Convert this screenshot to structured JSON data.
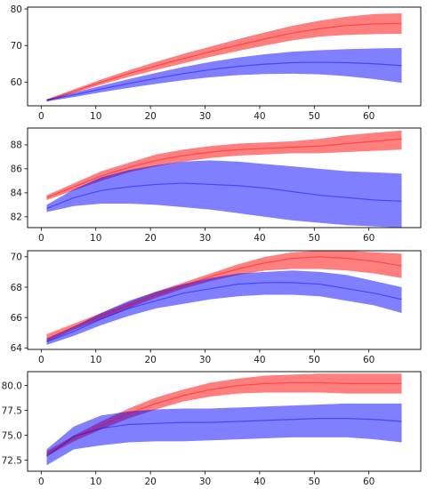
{
  "colors": {
    "series_a": "#ff0000",
    "series_b": "#0000ff",
    "band_opacity": 0.5,
    "line_opacity": 0.45,
    "axes": "#000000"
  },
  "chart_data": [
    {
      "type": "area",
      "grid": false,
      "legend": "none",
      "xlim": [
        -2.5,
        69.5
      ],
      "ylim": [
        53.5,
        80.5
      ],
      "xticks": [
        0,
        10,
        20,
        30,
        40,
        50,
        60
      ],
      "xtick_labels": [
        "0",
        "10",
        "20",
        "30",
        "40",
        "50",
        "60"
      ],
      "yticks": [
        60,
        70,
        80
      ],
      "ytick_labels": [
        "60",
        "70",
        "80"
      ],
      "x": [
        1,
        6,
        11,
        16,
        21,
        26,
        31,
        36,
        41,
        46,
        51,
        56,
        61,
        66
      ],
      "series": [
        {
          "color": "red",
          "mean": [
            55.0,
            57.5,
            60.0,
            62.3,
            64.4,
            66.4,
            68.3,
            70.1,
            71.8,
            73.4,
            74.6,
            75.5,
            75.9,
            76.0
          ],
          "lower": [
            54.7,
            57.0,
            59.3,
            61.4,
            63.3,
            65.1,
            66.9,
            68.5,
            70.0,
            71.4,
            72.4,
            72.9,
            73.1,
            73.2
          ],
          "upper": [
            55.3,
            58.0,
            60.7,
            63.2,
            65.5,
            67.7,
            69.7,
            71.7,
            73.6,
            75.4,
            76.8,
            77.9,
            78.6,
            78.8
          ]
        },
        {
          "color": "blue",
          "mean": [
            55.0,
            56.5,
            58.1,
            59.6,
            61.0,
            62.3,
            63.4,
            64.3,
            64.9,
            65.3,
            65.4,
            65.3,
            65.0,
            64.5
          ],
          "lower": [
            54.7,
            55.9,
            57.2,
            58.4,
            59.5,
            60.5,
            61.3,
            61.9,
            62.2,
            62.3,
            62.1,
            61.6,
            60.8,
            59.8
          ],
          "upper": [
            55.3,
            57.1,
            59.0,
            60.8,
            62.5,
            64.1,
            65.5,
            66.7,
            67.6,
            68.3,
            68.7,
            69.0,
            69.2,
            69.3
          ]
        }
      ]
    },
    {
      "type": "area",
      "grid": false,
      "legend": "none",
      "xlim": [
        -2.5,
        69.5
      ],
      "ylim": [
        81.1,
        89.4
      ],
      "xticks": [
        0,
        10,
        20,
        30,
        40,
        50,
        60
      ],
      "xtick_labels": [
        "0",
        "10",
        "20",
        "30",
        "40",
        "50",
        "60"
      ],
      "yticks": [
        82,
        84,
        86,
        88
      ],
      "ytick_labels": [
        "82",
        "84",
        "86",
        "88"
      ],
      "x": [
        1,
        6,
        11,
        16,
        21,
        26,
        31,
        36,
        41,
        46,
        51,
        56,
        61,
        66
      ],
      "series": [
        {
          "color": "red",
          "mean": [
            83.6,
            84.5,
            85.4,
            86.1,
            86.7,
            87.1,
            87.4,
            87.6,
            87.7,
            87.8,
            87.9,
            88.1,
            88.3,
            88.5
          ],
          "lower": [
            83.4,
            84.2,
            85.0,
            85.7,
            86.2,
            86.6,
            86.9,
            87.1,
            87.2,
            87.3,
            87.3,
            87.4,
            87.5,
            87.6
          ],
          "upper": [
            83.8,
            84.8,
            85.8,
            86.5,
            87.2,
            87.6,
            87.9,
            88.1,
            88.2,
            88.3,
            88.5,
            88.8,
            89.0,
            89.2
          ]
        },
        {
          "color": "blue",
          "mean": [
            82.7,
            83.6,
            84.2,
            84.5,
            84.7,
            84.8,
            84.7,
            84.6,
            84.4,
            84.1,
            83.8,
            83.6,
            83.4,
            83.3
          ],
          "lower": [
            82.4,
            82.9,
            83.1,
            83.1,
            83.0,
            82.8,
            82.6,
            82.3,
            82.0,
            81.7,
            81.5,
            81.3,
            81.2,
            81.1
          ],
          "upper": [
            83.0,
            84.3,
            85.3,
            85.9,
            86.3,
            86.6,
            86.7,
            86.6,
            86.4,
            86.2,
            86.0,
            85.8,
            85.7,
            85.6
          ]
        }
      ]
    },
    {
      "type": "area",
      "grid": false,
      "legend": "none",
      "xlim": [
        -2.5,
        69.5
      ],
      "ylim": [
        63.9,
        70.4
      ],
      "xticks": [
        0,
        10,
        20,
        30,
        40,
        50,
        60
      ],
      "xtick_labels": [
        "0",
        "10",
        "20",
        "30",
        "40",
        "50",
        "60"
      ],
      "yticks": [
        64,
        66,
        68,
        70
      ],
      "ytick_labels": [
        "64",
        "66",
        "68",
        "70"
      ],
      "x": [
        1,
        6,
        11,
        16,
        21,
        26,
        31,
        36,
        41,
        46,
        51,
        56,
        61,
        66
      ],
      "series": [
        {
          "color": "red",
          "mean": [
            64.6,
            65.4,
            66.1,
            66.8,
            67.5,
            68.1,
            68.7,
            69.2,
            69.6,
            69.9,
            70.0,
            69.9,
            69.7,
            69.4
          ],
          "lower": [
            64.4,
            65.2,
            65.9,
            66.6,
            67.3,
            67.9,
            68.4,
            68.8,
            69.1,
            69.2,
            69.2,
            69.1,
            68.9,
            68.6
          ],
          "upper": [
            64.9,
            65.6,
            66.3,
            67.0,
            67.7,
            68.3,
            68.9,
            69.5,
            70.0,
            70.3,
            70.4,
            70.4,
            70.3,
            70.2
          ]
        },
        {
          "color": "blue",
          "mean": [
            64.4,
            65.1,
            65.9,
            66.6,
            67.1,
            67.6,
            67.9,
            68.2,
            68.3,
            68.3,
            68.2,
            67.9,
            67.6,
            67.2
          ],
          "lower": [
            64.2,
            64.8,
            65.5,
            66.1,
            66.6,
            66.9,
            67.2,
            67.4,
            67.5,
            67.5,
            67.4,
            67.1,
            66.8,
            66.3
          ],
          "upper": [
            64.6,
            65.4,
            66.3,
            67.1,
            67.7,
            68.2,
            68.6,
            68.9,
            69.0,
            69.1,
            69.0,
            68.8,
            68.4,
            68.0
          ]
        }
      ]
    },
    {
      "type": "area",
      "grid": false,
      "legend": "none",
      "xlim": [
        -2.5,
        69.5
      ],
      "ylim": [
        71.4,
        81.4
      ],
      "xticks": [
        0,
        10,
        20,
        30,
        40,
        50,
        60
      ],
      "xtick_labels": [
        "0",
        "10",
        "20",
        "30",
        "40",
        "50",
        "60"
      ],
      "yticks": [
        72.5,
        75.0,
        77.5,
        80.0
      ],
      "ytick_labels": [
        "72.5",
        "75.0",
        "77.5",
        "80.0"
      ],
      "x": [
        1,
        6,
        11,
        16,
        21,
        26,
        31,
        36,
        41,
        46,
        51,
        56,
        61,
        66
      ],
      "series": [
        {
          "color": "red",
          "mean": [
            73.1,
            74.7,
            76.0,
            77.2,
            78.2,
            79.0,
            79.6,
            80.0,
            80.2,
            80.3,
            80.3,
            80.2,
            80.2,
            80.2
          ],
          "lower": [
            72.9,
            74.4,
            75.6,
            76.7,
            77.6,
            78.4,
            78.9,
            79.2,
            79.3,
            79.3,
            79.3,
            79.2,
            79.2,
            79.2
          ],
          "upper": [
            73.4,
            75.0,
            76.4,
            77.7,
            78.8,
            79.6,
            80.3,
            80.7,
            81.0,
            81.1,
            81.2,
            81.2,
            81.2,
            81.2
          ]
        },
        {
          "color": "blue",
          "mean": [
            72.9,
            74.9,
            75.7,
            76.1,
            76.2,
            76.3,
            76.3,
            76.4,
            76.5,
            76.6,
            76.7,
            76.7,
            76.6,
            76.4
          ],
          "lower": [
            72.0,
            73.6,
            74.0,
            74.3,
            74.4,
            74.4,
            74.5,
            74.6,
            74.7,
            74.8,
            74.8,
            74.8,
            74.6,
            74.3
          ],
          "upper": [
            73.6,
            75.9,
            77.0,
            77.4,
            77.6,
            77.7,
            77.7,
            77.8,
            77.9,
            78.0,
            78.1,
            78.2,
            78.2,
            78.2
          ]
        }
      ]
    }
  ]
}
